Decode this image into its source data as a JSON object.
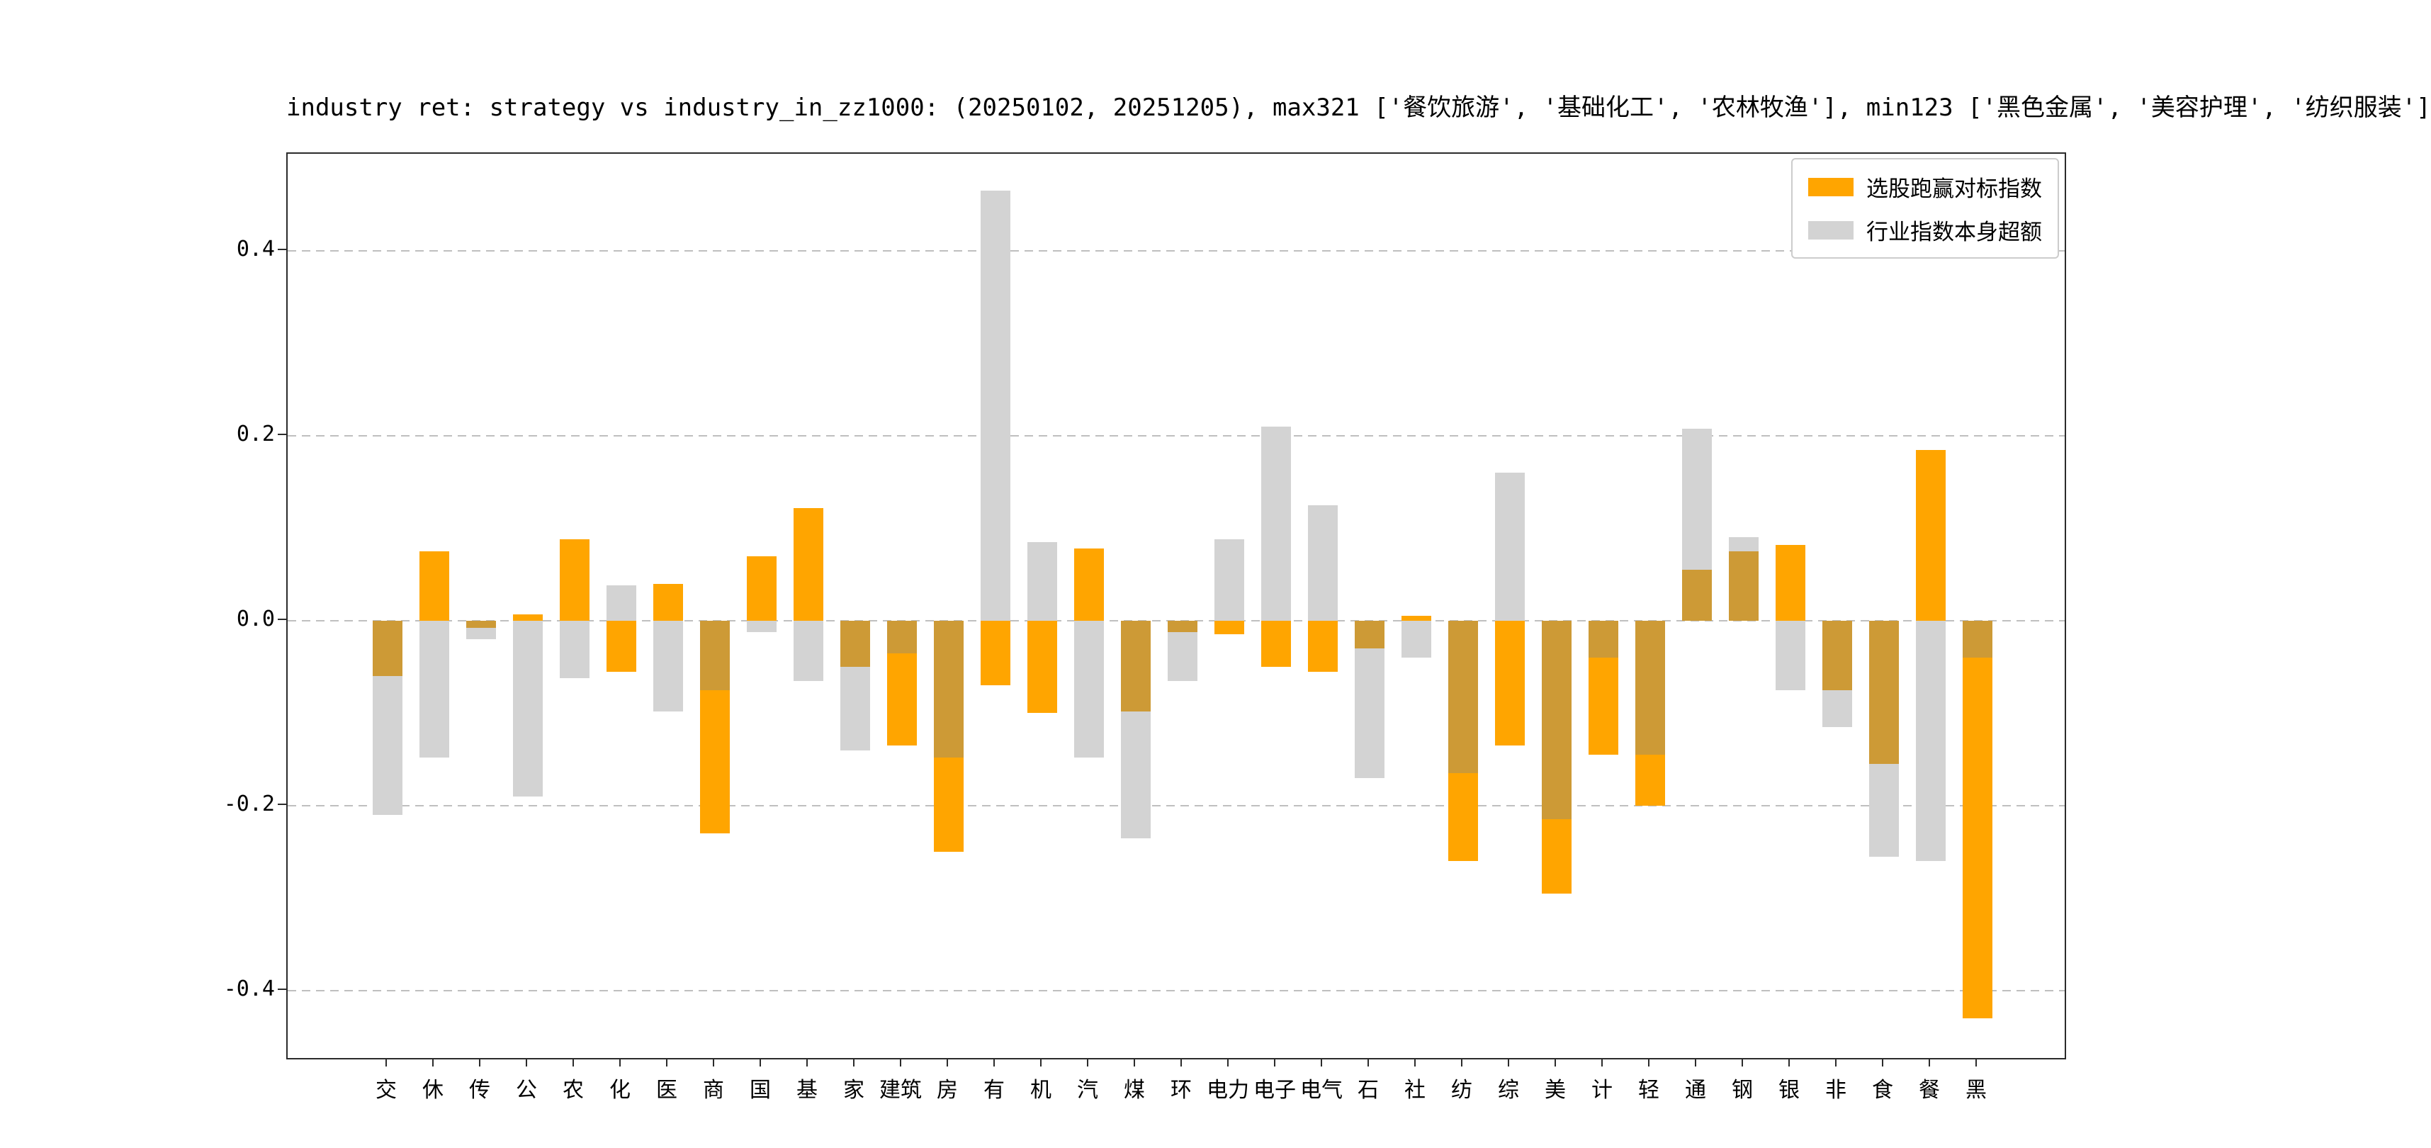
{
  "chart_data": {
    "type": "bar",
    "title": "industry ret: strategy vs industry_in_zz1000: (20250102, 20251205), max321 ['餐饮旅游', '基础化工', '农林牧渔'], min123 ['黑色金属', '美容护理', '纺织服装']",
    "categories": [
      "交",
      "休",
      "传",
      "公",
      "农",
      "化",
      "医",
      "商",
      "国",
      "基",
      "家",
      "建筑",
      "房",
      "有",
      "机",
      "汽",
      "煤",
      "环",
      "电力",
      "电子",
      "电气",
      "石",
      "社",
      "纺",
      "综",
      "美",
      "计",
      "轻",
      "通",
      "钢",
      "银",
      "非",
      "食",
      "餐",
      "黑"
    ],
    "series": [
      {
        "name": "选股跑赢对标指数",
        "color": "#ffa500",
        "values": [
          -0.06,
          0.075,
          -0.008,
          0.007,
          0.088,
          -0.055,
          0.04,
          -0.23,
          0.07,
          0.122,
          -0.05,
          -0.135,
          -0.25,
          -0.07,
          -0.1,
          0.078,
          -0.098,
          -0.012,
          -0.015,
          -0.05,
          -0.055,
          -0.03,
          0.005,
          -0.26,
          -0.135,
          -0.295,
          -0.145,
          -0.2,
          0.055,
          0.075,
          0.082,
          -0.075,
          -0.155,
          0.185,
          -0.43
        ]
      },
      {
        "name": "行业指数本身超额",
        "color": "#d3d3d3",
        "values": [
          -0.21,
          -0.148,
          -0.02,
          -0.19,
          -0.062,
          0.038,
          -0.098,
          -0.075,
          -0.012,
          -0.065,
          -0.14,
          -0.035,
          -0.148,
          0.465,
          0.085,
          -0.148,
          -0.235,
          -0.065,
          0.088,
          0.21,
          0.125,
          -0.17,
          -0.04,
          -0.165,
          0.16,
          -0.215,
          -0.04,
          -0.145,
          0.208,
          0.09,
          -0.075,
          -0.115,
          -0.255,
          -0.26,
          -0.04
        ]
      }
    ],
    "overlap_color": "#cd9a36",
    "ylim": [
      -0.476,
      0.505
    ],
    "yticks": [
      -0.4,
      -0.2,
      0.0,
      0.2,
      0.4
    ],
    "xlabel": "",
    "ylabel": "",
    "grid": "dashed-horizontal",
    "legend_position": "upper-right"
  }
}
